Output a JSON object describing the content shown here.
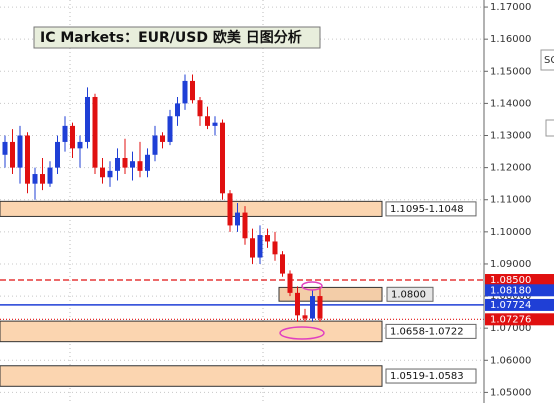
{
  "chart_data": {
    "type": "candlestick",
    "title": "IC Markets：EUR/USD 欧美 日图分析",
    "side_text": "SC",
    "up_color": "#1f3fd6",
    "down_color": "#e01010",
    "open": [
      1.124,
      1.128,
      1.12,
      1.13,
      1.115,
      1.118,
      1.115,
      1.12,
      1.128,
      1.133,
      1.126,
      1.128,
      1.142,
      1.12,
      1.117,
      1.119,
      1.123,
      1.12,
      1.122,
      1.119,
      1.124,
      1.13,
      1.128,
      1.136,
      1.14,
      1.147,
      1.141,
      1.136,
      1.133,
      1.134,
      1.112,
      1.102,
      1.106,
      1.098,
      1.092,
      1.099,
      1.097,
      1.093,
      1.087,
      1.081,
      1.074,
      1.073,
      1.08
    ],
    "high": [
      1.13,
      1.132,
      1.133,
      1.131,
      1.12,
      1.123,
      1.122,
      1.13,
      1.136,
      1.134,
      1.13,
      1.145,
      1.143,
      1.123,
      1.122,
      1.126,
      1.129,
      1.125,
      1.128,
      1.126,
      1.133,
      1.131,
      1.138,
      1.142,
      1.149,
      1.149,
      1.142,
      1.139,
      1.136,
      1.135,
      1.113,
      1.109,
      1.108,
      1.101,
      1.102,
      1.101,
      1.1,
      1.094,
      1.088,
      1.083,
      1.076,
      1.082,
      1.083
    ],
    "low": [
      1.12,
      1.118,
      1.115,
      1.112,
      1.11,
      1.113,
      1.114,
      1.118,
      1.125,
      1.123,
      1.12,
      1.126,
      1.118,
      1.115,
      1.114,
      1.116,
      1.118,
      1.116,
      1.117,
      1.117,
      1.122,
      1.126,
      1.127,
      1.133,
      1.138,
      1.14,
      1.133,
      1.132,
      1.13,
      1.11,
      1.1,
      1.1,
      1.096,
      1.09,
      1.09,
      1.095,
      1.091,
      1.086,
      1.08,
      1.072,
      1.072,
      1.072,
      1.072
    ],
    "close": [
      1.128,
      1.12,
      1.13,
      1.115,
      1.118,
      1.115,
      1.12,
      1.128,
      1.133,
      1.126,
      1.128,
      1.142,
      1.12,
      1.117,
      1.119,
      1.123,
      1.12,
      1.122,
      1.119,
      1.124,
      1.13,
      1.128,
      1.136,
      1.14,
      1.147,
      1.141,
      1.136,
      1.133,
      1.134,
      1.112,
      1.102,
      1.106,
      1.098,
      1.092,
      1.099,
      1.097,
      1.093,
      1.087,
      1.081,
      1.074,
      1.073,
      1.08,
      1.073
    ],
    "ylim": [
      1.0467,
      1.1722
    ],
    "yticks": [
      {
        "value": 1.17,
        "label": "1.17000"
      },
      {
        "value": 1.16,
        "label": "1.16000"
      },
      {
        "value": 1.15,
        "label": "1.15000"
      },
      {
        "value": 1.14,
        "label": "1.14000"
      },
      {
        "value": 1.13,
        "label": "1.13000"
      },
      {
        "value": 1.12,
        "label": "1.12000"
      },
      {
        "value": 1.11,
        "label": "1.11000"
      },
      {
        "value": 1.1,
        "label": "1.10000"
      },
      {
        "value": 1.09,
        "label": "1.09000"
      },
      {
        "value": 1.08,
        "label": "1.08000"
      },
      {
        "value": 1.07,
        "label": "1.07000"
      },
      {
        "value": 1.06,
        "label": "1.06000"
      },
      {
        "value": 1.05,
        "label": "1.05000"
      }
    ],
    "zones": [
      {
        "label": "1.1095-1.1048",
        "high": 1.1095,
        "low": 1.1048,
        "color": "#fbd5b0"
      },
      {
        "label": "1.0800",
        "high": 1.0827,
        "low": 1.0784,
        "color": "#f3cda8"
      },
      {
        "label": "1.0658-1.0722",
        "high": 1.0722,
        "low": 1.0658,
        "color": "#fbd5b0"
      },
      {
        "label": "1.0519-1.0583",
        "high": 1.0583,
        "low": 1.0519,
        "color": "#fbd5b0"
      }
    ],
    "levels": [
      {
        "value": 1.085,
        "label": "1.08500",
        "color": "#e01010",
        "style": "dashed"
      },
      {
        "value": 1.0818,
        "label": "1.08180",
        "color": "#1f3fd6",
        "style": "none"
      },
      {
        "value": 1.07724,
        "label": "1.07724",
        "color": "#1f3fd6",
        "style": "solid"
      },
      {
        "value": 1.07276,
        "label": "1.07276",
        "color": "#e01010",
        "style": "dotted"
      }
    ],
    "grid": true
  }
}
